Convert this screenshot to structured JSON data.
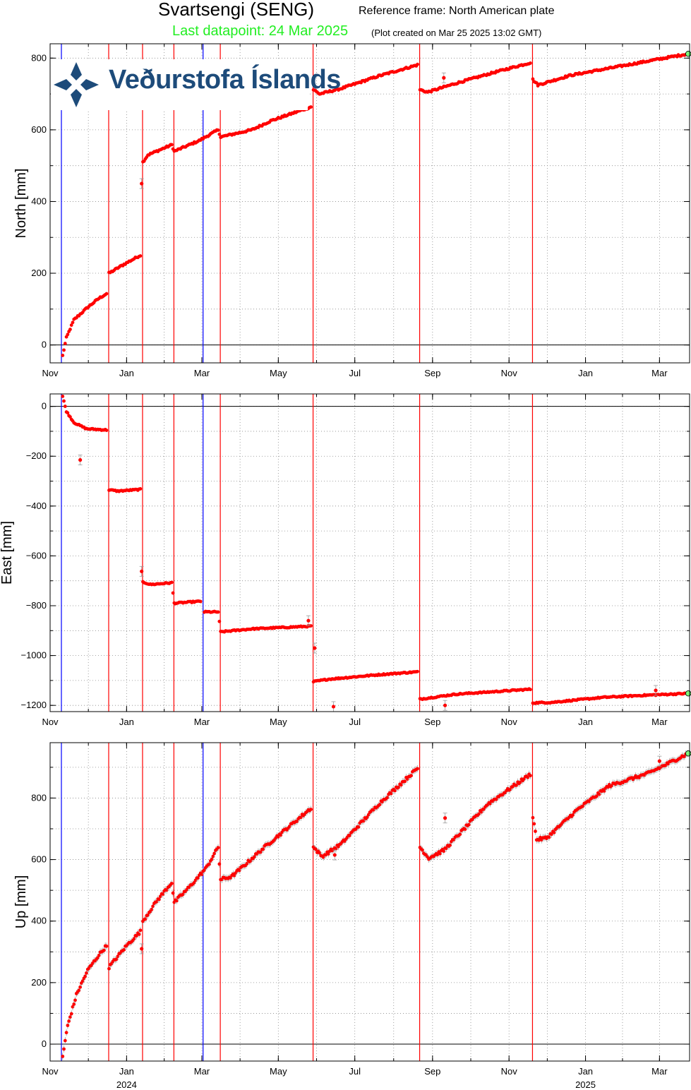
{
  "title": "Svartsengi (SENG)",
  "reference_frame": "Reference frame: North American plate",
  "last_datapoint": "Last datapoint: 24 Mar 2025",
  "plot_created": "(Plot created on Mar 25 2025 13:02 GMT)",
  "logo_text": "Veðurstofa Íslands",
  "colors": {
    "data": "#ff0000",
    "last_point": "#7fff7f",
    "event_red": "#ff0000",
    "event_blue": "#0000ff",
    "error_bar": "#999999"
  },
  "chart_data": [
    {
      "type": "scatter",
      "ylabel": "North [mm]",
      "ylim": [
        -50,
        840
      ],
      "yticks": [
        0,
        200,
        400,
        600,
        800
      ],
      "ytick_labels": [
        "0",
        "200",
        "400",
        "600",
        "800"
      ],
      "xlim": [
        "2023-11-01",
        "2025-03-25"
      ],
      "xticks": [
        "2023-11-01",
        "2024-01-01",
        "2024-03-01",
        "2024-05-01",
        "2024-07-01",
        "2024-09-01",
        "2024-11-01",
        "2025-01-01",
        "2025-03-01"
      ],
      "xtick_labels": [
        "Nov",
        "Jan",
        "Mar",
        "May",
        "Jul",
        "Sep",
        "Nov",
        "Jan",
        "Mar"
      ],
      "grid": true,
      "knots": [
        [
          "2023-11-11",
          -30
        ],
        [
          "2023-11-14",
          20
        ],
        [
          "2023-11-20",
          70
        ],
        [
          "2023-12-01",
          105
        ],
        [
          "2023-12-10",
          130
        ],
        [
          "2023-12-17",
          145
        ],
        [
          "2023-12-18",
          200
        ],
        [
          "2023-12-30",
          225
        ],
        [
          "2024-01-13",
          252
        ],
        [
          "2024-01-14",
          510
        ],
        [
          "2024-01-18",
          530
        ],
        [
          "2024-02-06",
          558
        ],
        [
          "2024-02-08",
          540
        ],
        [
          "2024-02-28",
          570
        ],
        [
          "2024-03-14",
          600
        ],
        [
          "2024-03-16",
          580
        ],
        [
          "2024-04-10",
          600
        ],
        [
          "2024-04-25",
          625
        ],
        [
          "2024-05-28",
          665
        ],
        [
          "2024-05-29",
          712
        ],
        [
          "2024-06-03",
          700
        ],
        [
          "2024-06-20",
          715
        ],
        [
          "2024-07-20",
          750
        ],
        [
          "2024-08-21",
          782
        ],
        [
          "2024-08-22",
          712
        ],
        [
          "2024-08-28",
          705
        ],
        [
          "2024-09-20",
          730
        ],
        [
          "2024-10-20",
          760
        ],
        [
          "2024-11-19",
          788
        ],
        [
          "2024-11-20",
          740
        ],
        [
          "2024-11-24",
          725
        ],
        [
          "2024-12-20",
          752
        ],
        [
          "2025-01-25",
          775
        ],
        [
          "2025-02-25",
          795
        ],
        [
          "2025-03-24",
          812
        ]
      ],
      "outliers": [
        [
          "2024-01-13",
          450
        ],
        [
          "2024-09-10",
          745
        ]
      ],
      "last_point": [
        "2025-03-24",
        812
      ]
    },
    {
      "type": "scatter",
      "ylabel": "East [mm]",
      "ylim": [
        -1225,
        50
      ],
      "yticks": [
        0,
        -200,
        -400,
        -600,
        -800,
        -1000,
        -1200
      ],
      "ytick_labels": [
        "0",
        "−200",
        "−400",
        "−600",
        "−800",
        "−1000",
        "−1200"
      ],
      "xlim": [
        "2023-11-01",
        "2025-03-25"
      ],
      "xticks": [
        "2023-11-01",
        "2024-01-01",
        "2024-03-01",
        "2024-05-01",
        "2024-07-01",
        "2024-09-01",
        "2024-11-01",
        "2025-01-01",
        "2025-03-01"
      ],
      "xtick_labels": [
        "Nov",
        "Jan",
        "Mar",
        "May",
        "Jul",
        "Sep",
        "Nov",
        "Jan",
        "Mar"
      ],
      "grid": true,
      "knots": [
        [
          "2023-11-11",
          40
        ],
        [
          "2023-11-14",
          -20
        ],
        [
          "2023-11-20",
          -65
        ],
        [
          "2023-11-30",
          -90
        ],
        [
          "2023-12-17",
          -95
        ],
        [
          "2023-12-18",
          -335
        ],
        [
          "2023-12-25",
          -340
        ],
        [
          "2024-01-13",
          -333
        ],
        [
          "2024-01-14",
          -705
        ],
        [
          "2024-01-20",
          -715
        ],
        [
          "2024-02-06",
          -708
        ],
        [
          "2024-02-08",
          -790
        ],
        [
          "2024-03-01",
          -782
        ],
        [
          "2024-03-02",
          -795
        ],
        [
          "2024-03-03",
          -825
        ],
        [
          "2024-03-14",
          -825
        ],
        [
          "2024-03-16",
          -905
        ],
        [
          "2024-04-10",
          -893
        ],
        [
          "2024-05-28",
          -882
        ],
        [
          "2024-05-29",
          -1105
        ],
        [
          "2024-06-10",
          -1095
        ],
        [
          "2024-07-20",
          -1077
        ],
        [
          "2024-08-21",
          -1065
        ],
        [
          "2024-08-22",
          -1175
        ],
        [
          "2024-09-20",
          -1155
        ],
        [
          "2024-10-20",
          -1145
        ],
        [
          "2024-11-19",
          -1135
        ],
        [
          "2024-11-20",
          -1190
        ],
        [
          "2024-12-05",
          -1188
        ],
        [
          "2025-01-15",
          -1168
        ],
        [
          "2025-02-15",
          -1160
        ],
        [
          "2025-03-24",
          -1152
        ]
      ],
      "outliers": [
        [
          "2023-11-25",
          -215
        ],
        [
          "2024-01-13",
          -662
        ],
        [
          "2024-05-25",
          -860
        ],
        [
          "2024-05-30",
          -970
        ],
        [
          "2024-06-14",
          -1205
        ],
        [
          "2024-09-11",
          -1200
        ],
        [
          "2025-02-26",
          -1140
        ]
      ],
      "last_point": [
        "2025-03-24",
        -1152
      ]
    },
    {
      "type": "scatter",
      "ylabel": "Up [mm]",
      "ylim": [
        -55,
        980
      ],
      "yticks": [
        0,
        200,
        400,
        600,
        800
      ],
      "ytick_labels": [
        "0",
        "200",
        "400",
        "600",
        "800"
      ],
      "xlim": [
        "2023-11-01",
        "2025-03-25"
      ],
      "xticks": [
        "2023-11-01",
        "2024-01-01",
        "2024-03-01",
        "2024-05-01",
        "2024-07-01",
        "2024-09-01",
        "2024-11-01",
        "2025-01-01",
        "2025-03-01"
      ],
      "xtick_labels": [
        "Nov",
        "Jan",
        "Mar",
        "May",
        "Jul",
        "Sep",
        "Nov",
        "Jan",
        "Mar"
      ],
      "year_labels": [
        [
          "2024-01-01",
          "2024"
        ],
        [
          "2025-01-01",
          "2025"
        ]
      ],
      "grid": true,
      "knots": [
        [
          "2023-11-11",
          -40
        ],
        [
          "2023-11-15",
          60
        ],
        [
          "2023-11-22",
          160
        ],
        [
          "2023-12-01",
          240
        ],
        [
          "2023-12-10",
          290
        ],
        [
          "2023-12-17",
          325
        ],
        [
          "2023-12-18",
          250
        ],
        [
          "2024-01-01",
          320
        ],
        [
          "2024-01-13",
          370
        ],
        [
          "2024-01-14",
          400
        ],
        [
          "2024-01-25",
          465
        ],
        [
          "2024-02-06",
          525
        ],
        [
          "2024-02-08",
          460
        ],
        [
          "2024-02-20",
          510
        ],
        [
          "2024-03-05",
          575
        ],
        [
          "2024-03-14",
          640
        ],
        [
          "2024-03-16",
          535
        ],
        [
          "2024-03-25",
          545
        ],
        [
          "2024-04-20",
          640
        ],
        [
          "2024-05-28",
          770
        ],
        [
          "2024-05-29",
          640
        ],
        [
          "2024-06-05",
          610
        ],
        [
          "2024-06-20",
          650
        ],
        [
          "2024-07-20",
          780
        ],
        [
          "2024-08-21",
          900
        ],
        [
          "2024-08-22",
          640
        ],
        [
          "2024-08-29",
          605
        ],
        [
          "2024-09-10",
          630
        ],
        [
          "2024-10-15",
          780
        ],
        [
          "2024-11-19",
          880
        ],
        [
          "2024-11-20",
          740
        ],
        [
          "2024-11-23",
          665
        ],
        [
          "2024-12-01",
          670
        ],
        [
          "2024-12-25",
          760
        ],
        [
          "2025-01-20",
          840
        ],
        [
          "2025-02-20",
          880
        ],
        [
          "2025-03-24",
          945
        ]
      ],
      "outliers": [
        [
          "2024-01-13",
          310
        ],
        [
          "2024-06-15",
          615
        ],
        [
          "2024-09-11",
          735
        ],
        [
          "2025-03-01",
          920
        ]
      ],
      "last_point": [
        "2025-03-24",
        945
      ]
    }
  ],
  "events_red": [
    "2023-12-18",
    "2024-01-14",
    "2024-02-08",
    "2024-03-16",
    "2024-05-29",
    "2024-08-22",
    "2024-11-20"
  ],
  "events_blue": [
    "2023-11-10",
    "2024-03-02"
  ]
}
